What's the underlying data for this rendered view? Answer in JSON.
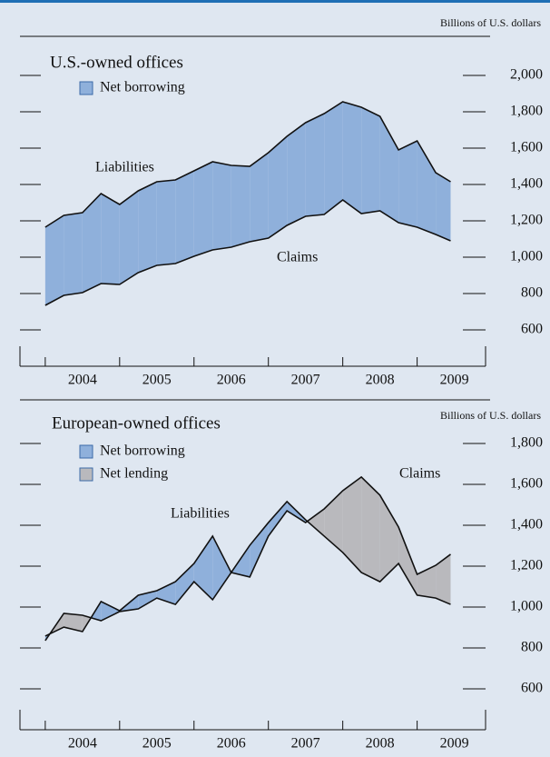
{
  "chart_data": [
    {
      "type": "area-band",
      "title": "U.S.-owned offices",
      "unit_label": "Billions of U.S. dollars",
      "x": [
        2004.0,
        2004.25,
        2004.5,
        2004.75,
        2005.0,
        2005.25,
        2005.5,
        2005.75,
        2006.0,
        2006.25,
        2006.5,
        2006.75,
        2007.0,
        2007.25,
        2007.5,
        2007.75,
        2008.0,
        2008.25,
        2008.5,
        2008.75,
        2009.0,
        2009.25,
        2009.45
      ],
      "series": [
        {
          "name": "Liabilities",
          "color": "#111111",
          "values": [
            1165,
            1230,
            1245,
            1350,
            1290,
            1365,
            1415,
            1425,
            1475,
            1525,
            1505,
            1500,
            1575,
            1665,
            1740,
            1790,
            1855,
            1825,
            1775,
            1590,
            1640,
            1465,
            1415
          ]
        },
        {
          "name": "Claims",
          "color": "#111111",
          "values": [
            735,
            790,
            805,
            855,
            850,
            915,
            955,
            965,
            1005,
            1040,
            1055,
            1085,
            1105,
            1175,
            1225,
            1235,
            1315,
            1240,
            1255,
            1190,
            1165,
            1125,
            1090
          ]
        }
      ],
      "legend": [
        {
          "label": "Net borrowing",
          "color": "#8fb0db"
        }
      ],
      "xlim": [
        2003.66,
        2009.92
      ],
      "xticks": [
        2004,
        2005,
        2006,
        2007,
        2008,
        2009
      ],
      "ylim": [
        400,
        2200
      ],
      "yticks": [
        600,
        800,
        {
          "value": 1000,
          "label": "1,000"
        },
        {
          "value": 1200,
          "label": "1,200"
        },
        {
          "value": 1400,
          "label": "1,400"
        },
        {
          "value": 1600,
          "label": "1,600"
        },
        {
          "value": 1800,
          "label": "1,800"
        },
        {
          "value": 2000,
          "label": "2,000"
        }
      ]
    },
    {
      "type": "area-band",
      "title": "European-owned offices",
      "unit_label": "Billions of U.S. dollars",
      "x": [
        2004.0,
        2004.25,
        2004.5,
        2004.75,
        2005.0,
        2005.25,
        2005.5,
        2005.75,
        2006.0,
        2006.25,
        2006.5,
        2006.75,
        2007.0,
        2007.25,
        2007.5,
        2007.75,
        2008.0,
        2008.25,
        2008.5,
        2008.75,
        2009.0,
        2009.25,
        2009.45
      ],
      "series": [
        {
          "name": "Liabilities",
          "color": "#111111",
          "values": [
            858,
            902,
            880,
            1027,
            982,
            1058,
            1080,
            1124,
            1213,
            1347,
            1169,
            1302,
            1413,
            1516,
            1427,
            1347,
            1267,
            1169,
            1124,
            1213,
            1058,
            1044,
            1013
          ]
        },
        {
          "name": "Claims",
          "color": "#111111",
          "values": [
            836,
            969,
            960,
            933,
            978,
            991,
            1044,
            1013,
            1124,
            1036,
            1169,
            1147,
            1347,
            1471,
            1413,
            1480,
            1569,
            1636,
            1547,
            1391,
            1160,
            1204,
            1258
          ]
        }
      ],
      "legend": [
        {
          "label": "Net borrowing",
          "color": "#8fb0db"
        },
        {
          "label": "Net lending",
          "color": "#b9b9bd"
        }
      ],
      "xlim": [
        2003.66,
        2009.92
      ],
      "xticks": [
        2004,
        2005,
        2006,
        2007,
        2008,
        2009
      ],
      "ylim": [
        400,
        2000
      ],
      "yticks": [
        600,
        800,
        {
          "value": 1000,
          "label": "1,000"
        },
        {
          "value": 1200,
          "label": "1,200"
        },
        {
          "value": 1400,
          "label": "1,400"
        },
        {
          "value": 1600,
          "label": "1,600"
        },
        {
          "value": 1800,
          "label": "1,800"
        }
      ]
    }
  ]
}
